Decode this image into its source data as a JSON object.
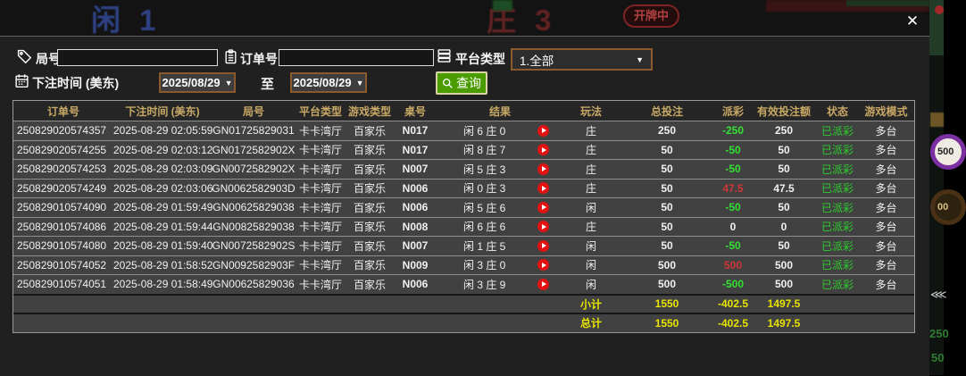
{
  "dialog": {
    "close_icon": "✕"
  },
  "filters": {
    "round_label": "局号",
    "round_value": "",
    "order_label": "订单号",
    "order_value": "",
    "platform_label": "平台类型",
    "platform_value": "1.全部",
    "bet_time_label": "下注时间 (美东)",
    "date_from": "2025/08/29",
    "to_label": "至",
    "date_to": "2025/08/29",
    "caret": "▼",
    "search_label": "查询"
  },
  "table": {
    "columns": [
      "订单号",
      "下注时间 (美东)",
      "局号",
      "平台类型",
      "游戏类型",
      "桌号",
      "结果",
      "玩法",
      "总投注",
      "派彩",
      "有效投注额",
      "状态",
      "游戏模式"
    ],
    "rows": [
      {
        "order": "250829020574357",
        "time": "2025-08-29 02:05:59",
        "round": "GN01725829031",
        "platform": "卡卡湾厅",
        "game": "百家乐",
        "table_no": "N017",
        "result": "闲 6 庄 0",
        "bet_type": "庄",
        "total_bet": "250",
        "payout": "-250",
        "payout_color": "green",
        "valid_bet": "250",
        "status": "已派彩",
        "mode": "多台"
      },
      {
        "order": "250829020574255",
        "time": "2025-08-29 02:03:12",
        "round": "GN0172582902X",
        "platform": "卡卡湾厅",
        "game": "百家乐",
        "table_no": "N017",
        "result": "闲 8 庄 7",
        "bet_type": "庄",
        "total_bet": "50",
        "payout": "-50",
        "payout_color": "green",
        "valid_bet": "50",
        "status": "已派彩",
        "mode": "多台"
      },
      {
        "order": "250829020574253",
        "time": "2025-08-29 02:03:09",
        "round": "GN0072582902X",
        "platform": "卡卡湾厅",
        "game": "百家乐",
        "table_no": "N007",
        "result": "闲 5 庄 3",
        "bet_type": "庄",
        "total_bet": "50",
        "payout": "-50",
        "payout_color": "green",
        "valid_bet": "50",
        "status": "已派彩",
        "mode": "多台"
      },
      {
        "order": "250829020574249",
        "time": "2025-08-29 02:03:06",
        "round": "GN0062582903D",
        "platform": "卡卡湾厅",
        "game": "百家乐",
        "table_no": "N006",
        "result": "闲 0 庄 3",
        "bet_type": "庄",
        "total_bet": "50",
        "payout": "47.5",
        "payout_color": "red",
        "valid_bet": "47.5",
        "status": "已派彩",
        "mode": "多台"
      },
      {
        "order": "250829010574090",
        "time": "2025-08-29 01:59:49",
        "round": "GN00625829038",
        "platform": "卡卡湾厅",
        "game": "百家乐",
        "table_no": "N006",
        "result": "闲 5 庄 6",
        "bet_type": "闲",
        "total_bet": "50",
        "payout": "-50",
        "payout_color": "green",
        "valid_bet": "50",
        "status": "已派彩",
        "mode": "多台"
      },
      {
        "order": "250829010574086",
        "time": "2025-08-29 01:59:44",
        "round": "GN00825829038",
        "platform": "卡卡湾厅",
        "game": "百家乐",
        "table_no": "N008",
        "result": "闲 6 庄 6",
        "bet_type": "庄",
        "total_bet": "50",
        "payout": "0",
        "payout_color": "white",
        "valid_bet": "0",
        "status": "已派彩",
        "mode": "多台"
      },
      {
        "order": "250829010574080",
        "time": "2025-08-29 01:59:40",
        "round": "GN0072582902S",
        "platform": "卡卡湾厅",
        "game": "百家乐",
        "table_no": "N007",
        "result": "闲 1 庄 5",
        "bet_type": "闲",
        "total_bet": "50",
        "payout": "-50",
        "payout_color": "green",
        "valid_bet": "50",
        "status": "已派彩",
        "mode": "多台"
      },
      {
        "order": "250829010574052",
        "time": "2025-08-29 01:58:52",
        "round": "GN0092582903F",
        "platform": "卡卡湾厅",
        "game": "百家乐",
        "table_no": "N009",
        "result": "闲 3 庄 0",
        "bet_type": "闲",
        "total_bet": "500",
        "payout": "500",
        "payout_color": "red",
        "valid_bet": "500",
        "status": "已派彩",
        "mode": "多台"
      },
      {
        "order": "250829010574051",
        "time": "2025-08-29 01:58:49",
        "round": "GN00625829036",
        "platform": "卡卡湾厅",
        "game": "百家乐",
        "table_no": "N006",
        "result": "闲 3 庄 9",
        "bet_type": "闲",
        "total_bet": "500",
        "payout": "-500",
        "payout_color": "green",
        "valid_bet": "500",
        "status": "已派彩",
        "mode": "多台"
      }
    ],
    "summary": [
      {
        "label": "小计",
        "total_bet": "1550",
        "payout": "-402.5",
        "valid_bet": "1497.5"
      },
      {
        "label": "总计",
        "total_bet": "1550",
        "payout": "-402.5",
        "valid_bet": "1497.5"
      }
    ]
  },
  "backdrop": {
    "player_text": "闲 1",
    "banker_text": "庄 3",
    "dealing_badge": "开牌中",
    "chip_top": "500",
    "chip_bottom": "00",
    "amount_top": "250",
    "amount_bottom": "50",
    "chevrons": "⋘"
  },
  "colors": {
    "query_green": "#4a9c00",
    "select_border_brown": "#8a5a2b",
    "header_gold": "#c8a865",
    "payout_negative_green": "#33e033",
    "payout_positive_red": "#cf3535",
    "status_green": "#2ecc2e",
    "summary_yellow": "#e8e400",
    "play_red": "#e31212"
  }
}
